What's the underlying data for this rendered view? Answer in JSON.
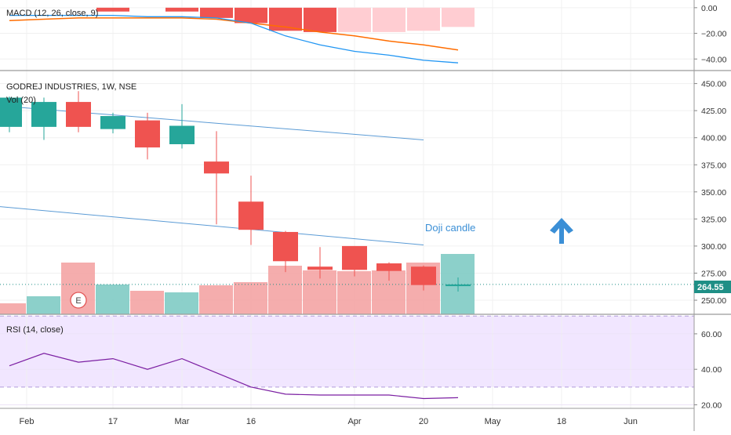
{
  "chart_data": {
    "type": "candlestick",
    "title": "GODREJ INDUSTRIES, 1W, NSE",
    "volume_label": "Vol (20)",
    "annotation": "Doji candle",
    "earnings_marker": "E",
    "last_price": "264.55",
    "x_ticks": [
      "Feb",
      "17",
      "Mar",
      "16",
      "Apr",
      "20",
      "May",
      "18",
      "Jun"
    ],
    "price_axis": {
      "ylim": [
        237,
        462
      ],
      "ticks": [
        "450.00",
        "425.00",
        "400.00",
        "375.00",
        "350.00",
        "325.00",
        "300.00",
        "275.00",
        "250.00"
      ]
    },
    "candles": [
      {
        "o": 410,
        "h": 438,
        "l": 405,
        "c": 437
      },
      {
        "o": 410,
        "h": 437,
        "l": 398,
        "c": 433
      },
      {
        "o": 433,
        "h": 443,
        "l": 405,
        "c": 410
      },
      {
        "o": 408,
        "h": 423,
        "l": 404,
        "c": 420
      },
      {
        "o": 416,
        "h": 423,
        "l": 380,
        "c": 391
      },
      {
        "o": 394,
        "h": 431,
        "l": 390,
        "c": 411
      },
      {
        "o": 378,
        "h": 406,
        "l": 320,
        "c": 367
      },
      {
        "o": 341,
        "h": 365,
        "l": 301,
        "c": 315
      },
      {
        "o": 313,
        "h": 314,
        "l": 276,
        "c": 286
      },
      {
        "o": 281,
        "h": 299,
        "l": 270,
        "c": 278
      },
      {
        "o": 300,
        "h": 300,
        "l": 272,
        "c": 278
      },
      {
        "o": 284,
        "h": 285,
        "l": 268,
        "c": 277
      },
      {
        "o": 281,
        "h": 282,
        "l": 259,
        "c": 264
      },
      {
        "o": 263,
        "h": 271,
        "l": 258,
        "c": 264.55
      }
    ],
    "volume": [
      {
        "v": 14,
        "up": false
      },
      {
        "v": 23,
        "up": true
      },
      {
        "v": 66,
        "up": false
      },
      {
        "v": 38,
        "up": true
      },
      {
        "v": 30,
        "up": false
      },
      {
        "v": 28,
        "up": true
      },
      {
        "v": 37,
        "up": false
      },
      {
        "v": 41,
        "up": false
      },
      {
        "v": 62,
        "up": false
      },
      {
        "v": 56,
        "up": false
      },
      {
        "v": 55,
        "up": false
      },
      {
        "v": 56,
        "up": false
      },
      {
        "v": 66,
        "up": false
      },
      {
        "v": 77,
        "up": true
      }
    ],
    "trendlines": [
      {
        "x1": -0.5,
        "y1": 430,
        "x2": 12,
        "y2": 398
      },
      {
        "x1": -0.5,
        "y1": 337,
        "x2": 12,
        "y2": 301
      }
    ],
    "macd": {
      "label": "MACD (12, 26, close, 9)",
      "ylim": [
        -49,
        6
      ],
      "ticks": [
        "0.00",
        "−20.00",
        "−40.00"
      ],
      "histogram": [
        0,
        0,
        0,
        -3,
        0,
        -3,
        -8,
        -12,
        -18,
        -19,
        -19,
        -19,
        -18,
        -15
      ],
      "macd_line": [
        -6,
        -6,
        -6,
        -6,
        -7,
        -7,
        -8,
        -12,
        -22,
        -29,
        -34,
        -37,
        -41,
        -43
      ],
      "signal_line": [
        -10,
        -9,
        -8,
        -8,
        -8,
        -8,
        -9,
        -12,
        -15,
        -19,
        -22,
        -26,
        -29,
        -33
      ]
    },
    "rsi": {
      "label": "RSI (14, close)",
      "ylim": [
        18,
        71
      ],
      "ticks": [
        "60.00",
        "40.00",
        "20.00"
      ],
      "bands": [
        70,
        30
      ],
      "values": [
        42,
        49,
        44,
        46,
        40,
        46,
        38,
        30,
        26,
        25.5,
        25.5,
        25.5,
        23.5,
        24
      ]
    }
  }
}
